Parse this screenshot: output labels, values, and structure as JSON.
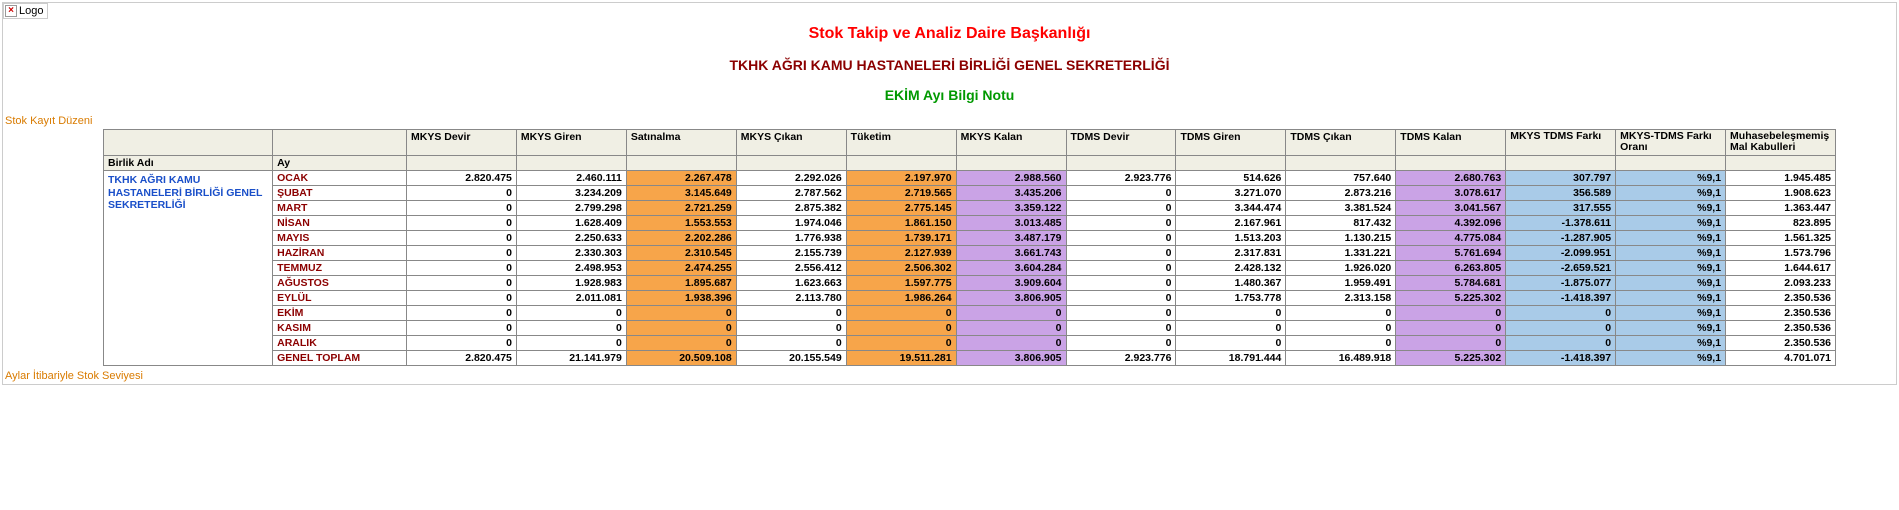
{
  "logo_text": "Logo",
  "titles": {
    "t1": "Stok Takip ve Analiz Daire Başkanlığı",
    "t2": "TKHK AĞRI KAMU HASTANELERİ BİRLİĞİ GENEL SEKRETERLİĞİ",
    "t3": "EKİM Ayı Bilgi Notu"
  },
  "title_colors": {
    "t1": "#ff0000",
    "t2": "#8b0000",
    "t3": "#009900"
  },
  "section_labels": {
    "top": "Stok Kayıt Düzeni",
    "bottom": "Aylar İtibariyle Stok Seviyesi",
    "color": "#d97b00"
  },
  "subheaders": {
    "birlik": "Birlik Adı",
    "ay": "Ay"
  },
  "birlik_name": "TKHK AĞRI KAMU HASTANELERİ BİRLİĞİ GENEL SEKRETERLİĞİ",
  "birlik_color": "#1a4fc9",
  "month_color": "#8b0000",
  "highlight_colors": {
    "orange": "#f7a54a",
    "violet": "#caa3e6",
    "blue": "#a9cbe8"
  },
  "columns": [
    {
      "key": "mkys_devir",
      "label": "MKYS Devir"
    },
    {
      "key": "mkys_giren",
      "label": "MKYS Giren"
    },
    {
      "key": "satinalma",
      "label": "Satınalma",
      "hl": "orange"
    },
    {
      "key": "mkys_cikan",
      "label": "MKYS Çıkan"
    },
    {
      "key": "tuketim",
      "label": "Tüketim",
      "hl": "orange"
    },
    {
      "key": "mkys_kalan",
      "label": "MKYS Kalan",
      "hl": "violet"
    },
    {
      "key": "tdms_devir",
      "label": "TDMS Devir"
    },
    {
      "key": "tdms_giren",
      "label": "TDMS Giren"
    },
    {
      "key": "tdms_cikan",
      "label": "TDMS Çıkan"
    },
    {
      "key": "tdms_kalan",
      "label": "TDMS Kalan",
      "hl": "violet"
    },
    {
      "key": "fark",
      "label": "MKYS TDMS Farkı",
      "hl": "blue",
      "wrap": true
    },
    {
      "key": "oran",
      "label": "MKYS-TDMS Farkı Oranı",
      "hl": "blue",
      "wrap": true
    },
    {
      "key": "muhasebe",
      "label": "Muhasebeleşmemiş Mal Kabulleri",
      "wrap": true
    }
  ],
  "rows": [
    {
      "ay": "OCAK",
      "mkys_devir": "2.820.475",
      "mkys_giren": "2.460.111",
      "satinalma": "2.267.478",
      "mkys_cikan": "2.292.026",
      "tuketim": "2.197.970",
      "mkys_kalan": "2.988.560",
      "tdms_devir": "2.923.776",
      "tdms_giren": "514.626",
      "tdms_cikan": "757.640",
      "tdms_kalan": "2.680.763",
      "fark": "307.797",
      "oran": "%9,1",
      "muhasebe": "1.945.485"
    },
    {
      "ay": "ŞUBAT",
      "mkys_devir": "0",
      "mkys_giren": "3.234.209",
      "satinalma": "3.145.649",
      "mkys_cikan": "2.787.562",
      "tuketim": "2.719.565",
      "mkys_kalan": "3.435.206",
      "tdms_devir": "0",
      "tdms_giren": "3.271.070",
      "tdms_cikan": "2.873.216",
      "tdms_kalan": "3.078.617",
      "fark": "356.589",
      "oran": "%9,1",
      "muhasebe": "1.908.623"
    },
    {
      "ay": "MART",
      "mkys_devir": "0",
      "mkys_giren": "2.799.298",
      "satinalma": "2.721.259",
      "mkys_cikan": "2.875.382",
      "tuketim": "2.775.145",
      "mkys_kalan": "3.359.122",
      "tdms_devir": "0",
      "tdms_giren": "3.344.474",
      "tdms_cikan": "3.381.524",
      "tdms_kalan": "3.041.567",
      "fark": "317.555",
      "oran": "%9,1",
      "muhasebe": "1.363.447"
    },
    {
      "ay": "NİSAN",
      "mkys_devir": "0",
      "mkys_giren": "1.628.409",
      "satinalma": "1.553.553",
      "mkys_cikan": "1.974.046",
      "tuketim": "1.861.150",
      "mkys_kalan": "3.013.485",
      "tdms_devir": "0",
      "tdms_giren": "2.167.961",
      "tdms_cikan": "817.432",
      "tdms_kalan": "4.392.096",
      "fark": "-1.378.611",
      "oran": "%9,1",
      "muhasebe": "823.895"
    },
    {
      "ay": "MAYIS",
      "mkys_devir": "0",
      "mkys_giren": "2.250.633",
      "satinalma": "2.202.286",
      "mkys_cikan": "1.776.938",
      "tuketim": "1.739.171",
      "mkys_kalan": "3.487.179",
      "tdms_devir": "0",
      "tdms_giren": "1.513.203",
      "tdms_cikan": "1.130.215",
      "tdms_kalan": "4.775.084",
      "fark": "-1.287.905",
      "oran": "%9,1",
      "muhasebe": "1.561.325"
    },
    {
      "ay": "HAZİRAN",
      "mkys_devir": "0",
      "mkys_giren": "2.330.303",
      "satinalma": "2.310.545",
      "mkys_cikan": "2.155.739",
      "tuketim": "2.127.939",
      "mkys_kalan": "3.661.743",
      "tdms_devir": "0",
      "tdms_giren": "2.317.831",
      "tdms_cikan": "1.331.221",
      "tdms_kalan": "5.761.694",
      "fark": "-2.099.951",
      "oran": "%9,1",
      "muhasebe": "1.573.796"
    },
    {
      "ay": "TEMMUZ",
      "mkys_devir": "0",
      "mkys_giren": "2.498.953",
      "satinalma": "2.474.255",
      "mkys_cikan": "2.556.412",
      "tuketim": "2.506.302",
      "mkys_kalan": "3.604.284",
      "tdms_devir": "0",
      "tdms_giren": "2.428.132",
      "tdms_cikan": "1.926.020",
      "tdms_kalan": "6.263.805",
      "fark": "-2.659.521",
      "oran": "%9,1",
      "muhasebe": "1.644.617"
    },
    {
      "ay": "AĞUSTOS",
      "mkys_devir": "0",
      "mkys_giren": "1.928.983",
      "satinalma": "1.895.687",
      "mkys_cikan": "1.623.663",
      "tuketim": "1.597.775",
      "mkys_kalan": "3.909.604",
      "tdms_devir": "0",
      "tdms_giren": "1.480.367",
      "tdms_cikan": "1.959.491",
      "tdms_kalan": "5.784.681",
      "fark": "-1.875.077",
      "oran": "%9,1",
      "muhasebe": "2.093.233"
    },
    {
      "ay": "EYLÜL",
      "mkys_devir": "0",
      "mkys_giren": "2.011.081",
      "satinalma": "1.938.396",
      "mkys_cikan": "2.113.780",
      "tuketim": "1.986.264",
      "mkys_kalan": "3.806.905",
      "tdms_devir": "0",
      "tdms_giren": "1.753.778",
      "tdms_cikan": "2.313.158",
      "tdms_kalan": "5.225.302",
      "fark": "-1.418.397",
      "oran": "%9,1",
      "muhasebe": "2.350.536"
    },
    {
      "ay": "EKİM",
      "mkys_devir": "0",
      "mkys_giren": "0",
      "satinalma": "0",
      "mkys_cikan": "0",
      "tuketim": "0",
      "mkys_kalan": "0",
      "tdms_devir": "0",
      "tdms_giren": "0",
      "tdms_cikan": "0",
      "tdms_kalan": "0",
      "fark": "0",
      "oran": "%9,1",
      "muhasebe": "2.350.536"
    },
    {
      "ay": "KASIM",
      "mkys_devir": "0",
      "mkys_giren": "0",
      "satinalma": "0",
      "mkys_cikan": "0",
      "tuketim": "0",
      "mkys_kalan": "0",
      "tdms_devir": "0",
      "tdms_giren": "0",
      "tdms_cikan": "0",
      "tdms_kalan": "0",
      "fark": "0",
      "oran": "%9,1",
      "muhasebe": "2.350.536"
    },
    {
      "ay": "ARALIK",
      "mkys_devir": "0",
      "mkys_giren": "0",
      "satinalma": "0",
      "mkys_cikan": "0",
      "tuketim": "0",
      "mkys_kalan": "0",
      "tdms_devir": "0",
      "tdms_giren": "0",
      "tdms_cikan": "0",
      "tdms_kalan": "0",
      "fark": "0",
      "oran": "%9,1",
      "muhasebe": "2.350.536"
    },
    {
      "ay": "GENEL TOPLAM",
      "mkys_devir": "2.820.475",
      "mkys_giren": "21.141.979",
      "satinalma": "20.509.108",
      "mkys_cikan": "20.155.549",
      "tuketim": "19.511.281",
      "mkys_kalan": "3.806.905",
      "tdms_devir": "2.923.776",
      "tdms_giren": "18.791.444",
      "tdms_cikan": "16.489.918",
      "tdms_kalan": "5.225.302",
      "fark": "-1.418.397",
      "oran": "%9,1",
      "muhasebe": "4.701.071"
    }
  ]
}
